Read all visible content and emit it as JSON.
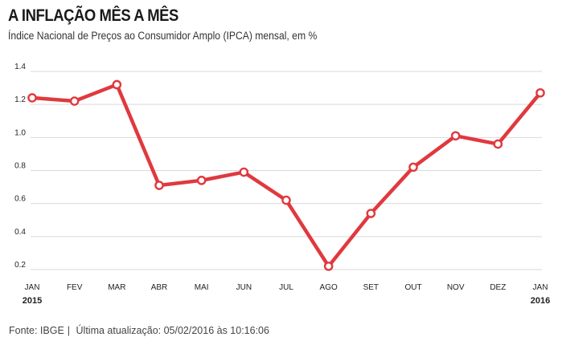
{
  "header": {
    "title": "A INFLAÇÃO MÊS A MÊS",
    "subtitle": "Índice Nacional de Preços ao Consumidor Amplo (IPCA) mensal, em %"
  },
  "footer": {
    "source_label": "Fonte: IBGE",
    "separator": "|",
    "updated": "Última atualização: 05/02/2016 às 10:16:06"
  },
  "colors": {
    "line": "#e0393e",
    "grid": "#d9d9d9",
    "marker_fill": "#ffffff"
  },
  "chart_data": {
    "type": "line",
    "title": "A INFLAÇÃO MÊS A MÊS",
    "subtitle": "Índice Nacional de Preços ao Consumidor Amplo (IPCA) mensal, em %",
    "xlabel": "",
    "ylabel": "",
    "categories": [
      "JAN",
      "FEV",
      "MAR",
      "ABR",
      "MAI",
      "JUN",
      "JUL",
      "AGO",
      "SET",
      "OUT",
      "NOV",
      "DEZ",
      "JAN"
    ],
    "year_labels": [
      "2015",
      "",
      "",
      "",
      "",
      "",
      "",
      "",
      "",
      "",
      "",
      "",
      "2016"
    ],
    "series": [
      {
        "name": "IPCA mensal",
        "values": [
          1.24,
          1.22,
          1.32,
          0.71,
          0.74,
          0.79,
          0.62,
          0.22,
          0.54,
          0.82,
          1.01,
          0.96,
          1.27
        ]
      }
    ],
    "yticks": [
      0.2,
      0.4,
      0.6,
      0.8,
      1.0,
      1.2,
      1.4
    ],
    "ytick_labels": [
      "0.2",
      "0.4",
      "0.6",
      "0.8",
      "1.0",
      "1.2",
      "1.4"
    ],
    "ylim": [
      0.2,
      1.4
    ],
    "grid": true
  }
}
